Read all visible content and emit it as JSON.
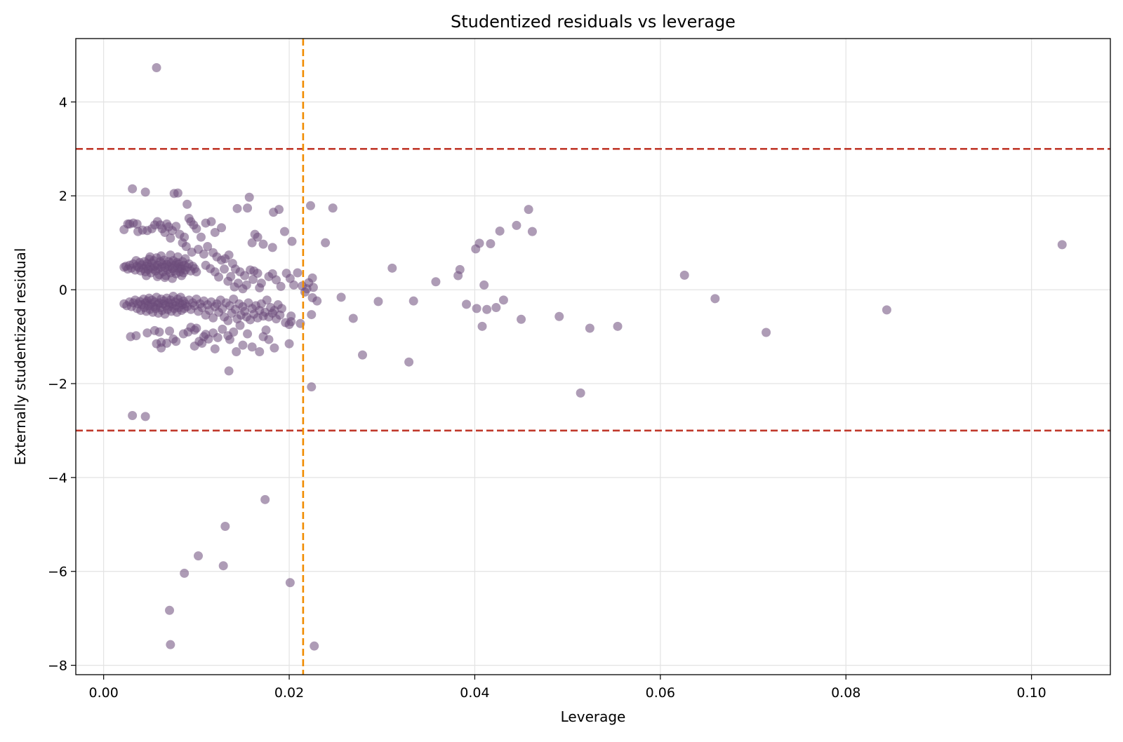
{
  "chart_data": {
    "type": "scatter",
    "title": "Studentized residuals vs leverage",
    "xlabel": "Leverage",
    "ylabel": "Externally studentized residual",
    "xlim": [
      -0.003,
      0.1085
    ],
    "ylim": [
      -8.2,
      5.35
    ],
    "xticks": [
      0.0,
      0.02,
      0.04,
      0.06,
      0.08,
      0.1
    ],
    "xtick_labels": [
      "0.00",
      "0.02",
      "0.04",
      "0.06",
      "0.08",
      "0.10"
    ],
    "yticks": [
      -8,
      -6,
      -4,
      -2,
      0,
      2,
      4
    ],
    "ytick_labels": [
      "−8",
      "−6",
      "−4",
      "−2",
      "0",
      "2",
      "4"
    ],
    "grid": true,
    "colors": {
      "points": "#6b4a7a",
      "hline": "#c0392b",
      "vline": "#f08c00"
    },
    "reference_lines": {
      "horizontal": [
        3,
        -3
      ],
      "vertical": [
        0.0215
      ]
    },
    "points": [
      [
        0.0057,
        4.73
      ],
      [
        0.0031,
        2.15
      ],
      [
        0.0045,
        2.08
      ],
      [
        0.0076,
        2.05
      ],
      [
        0.008,
        2.06
      ],
      [
        0.009,
        1.82
      ],
      [
        0.0022,
        1.28
      ],
      [
        0.0026,
        1.4
      ],
      [
        0.0028,
        1.4
      ],
      [
        0.0032,
        1.42
      ],
      [
        0.0036,
        1.4
      ],
      [
        0.0037,
        1.24
      ],
      [
        0.0042,
        1.27
      ],
      [
        0.0047,
        1.26
      ],
      [
        0.0052,
        1.3
      ],
      [
        0.0055,
        1.38
      ],
      [
        0.0058,
        1.45
      ],
      [
        0.0061,
        1.38
      ],
      [
        0.0063,
        1.3
      ],
      [
        0.0066,
        1.22
      ],
      [
        0.0068,
        1.4
      ],
      [
        0.007,
        1.34
      ],
      [
        0.0072,
        1.1
      ],
      [
        0.0074,
        1.26
      ],
      [
        0.0078,
        1.35
      ],
      [
        0.0082,
        1.18
      ],
      [
        0.0085,
        1.0
      ],
      [
        0.0087,
        1.12
      ],
      [
        0.0092,
        1.52
      ],
      [
        0.0094,
        1.45
      ],
      [
        0.0097,
        1.38
      ],
      [
        0.01,
        1.3
      ],
      [
        0.0105,
        1.12
      ],
      [
        0.011,
        1.42
      ],
      [
        0.0116,
        1.45
      ],
      [
        0.012,
        1.22
      ],
      [
        0.0127,
        1.32
      ],
      [
        0.0144,
        1.73
      ],
      [
        0.0155,
        1.74
      ],
      [
        0.0157,
        1.97
      ],
      [
        0.016,
        1.0
      ],
      [
        0.0163,
        1.18
      ],
      [
        0.0166,
        1.12
      ],
      [
        0.0172,
        0.97
      ],
      [
        0.0182,
        0.9
      ],
      [
        0.0183,
        1.65
      ],
      [
        0.0189,
        1.71
      ],
      [
        0.0195,
        1.24
      ],
      [
        0.0203,
        1.03
      ],
      [
        0.0223,
        1.79
      ],
      [
        0.0247,
        1.74
      ],
      [
        0.0239,
        1.0
      ],
      [
        0.0089,
        0.92
      ],
      [
        0.0095,
        0.8
      ],
      [
        0.0102,
        0.86
      ],
      [
        0.0108,
        0.76
      ],
      [
        0.0112,
        0.92
      ],
      [
        0.0118,
        0.79
      ],
      [
        0.0122,
        0.7
      ],
      [
        0.0127,
        0.63
      ],
      [
        0.0131,
        0.66
      ],
      [
        0.0135,
        0.74
      ],
      [
        0.0139,
        0.56
      ],
      [
        0.0142,
        0.44
      ],
      [
        0.0147,
        0.38
      ],
      [
        0.0152,
        0.3
      ],
      [
        0.0158,
        0.42
      ],
      [
        0.0161,
        0.22
      ],
      [
        0.0166,
        0.35
      ],
      [
        0.017,
        0.14
      ],
      [
        0.0178,
        0.28
      ],
      [
        0.0182,
        0.34
      ],
      [
        0.0186,
        0.21
      ],
      [
        0.0191,
        0.07
      ],
      [
        0.0197,
        0.35
      ],
      [
        0.0201,
        0.24
      ],
      [
        0.0205,
        0.1
      ],
      [
        0.0209,
        0.36
      ],
      [
        0.0214,
        0.08
      ],
      [
        0.0219,
        0.02
      ],
      [
        0.0221,
        0.15
      ],
      [
        0.0225,
        0.25
      ],
      [
        0.023,
        -0.24
      ],
      [
        0.0226,
        0.05
      ],
      [
        0.0217,
        -0.05
      ],
      [
        0.011,
        0.52
      ],
      [
        0.0115,
        0.45
      ],
      [
        0.012,
        0.38
      ],
      [
        0.0124,
        0.27
      ],
      [
        0.013,
        0.44
      ],
      [
        0.0134,
        0.18
      ],
      [
        0.0137,
        0.28
      ],
      [
        0.0141,
        0.06
      ],
      [
        0.0145,
        0.14
      ],
      [
        0.015,
        0.02
      ],
      [
        0.0154,
        0.1
      ],
      [
        0.0162,
        0.4
      ],
      [
        0.0168,
        0.04
      ],
      [
        0.0022,
        0.48
      ],
      [
        0.0024,
        0.5
      ],
      [
        0.0026,
        0.44
      ],
      [
        0.0028,
        0.52
      ],
      [
        0.003,
        0.46
      ],
      [
        0.0032,
        0.55
      ],
      [
        0.0034,
        0.42
      ],
      [
        0.0035,
        0.62
      ],
      [
        0.0036,
        0.5
      ],
      [
        0.0038,
        0.47
      ],
      [
        0.0039,
        0.58
      ],
      [
        0.004,
        0.4
      ],
      [
        0.0041,
        0.53
      ],
      [
        0.0043,
        0.45
      ],
      [
        0.0044,
        0.6
      ],
      [
        0.0045,
        0.38
      ],
      [
        0.0046,
        0.5
      ],
      [
        0.0047,
        0.56
      ],
      [
        0.0048,
        0.43
      ],
      [
        0.0049,
        0.65
      ],
      [
        0.005,
        0.48
      ],
      [
        0.0051,
        0.36
      ],
      [
        0.0052,
        0.57
      ],
      [
        0.0053,
        0.44
      ],
      [
        0.0054,
        0.62
      ],
      [
        0.0055,
        0.5
      ],
      [
        0.0056,
        0.4
      ],
      [
        0.0057,
        0.68
      ],
      [
        0.0058,
        0.52
      ],
      [
        0.0059,
        0.45
      ],
      [
        0.006,
        0.32
      ],
      [
        0.0061,
        0.6
      ],
      [
        0.0062,
        0.48
      ],
      [
        0.0063,
        0.55
      ],
      [
        0.0064,
        0.38
      ],
      [
        0.0065,
        0.63
      ],
      [
        0.0066,
        0.47
      ],
      [
        0.0067,
        0.3
      ],
      [
        0.0068,
        0.54
      ],
      [
        0.0069,
        0.42
      ],
      [
        0.007,
        0.6
      ],
      [
        0.0071,
        0.49
      ],
      [
        0.0072,
        0.36
      ],
      [
        0.0073,
        0.57
      ],
      [
        0.0074,
        0.45
      ],
      [
        0.0075,
        0.62
      ],
      [
        0.0076,
        0.4
      ],
      [
        0.0077,
        0.52
      ],
      [
        0.0078,
        0.34
      ],
      [
        0.0079,
        0.58
      ],
      [
        0.008,
        0.46
      ],
      [
        0.0081,
        0.55
      ],
      [
        0.0082,
        0.38
      ],
      [
        0.0083,
        0.5
      ],
      [
        0.0084,
        0.44
      ],
      [
        0.0085,
        0.6
      ],
      [
        0.0086,
        0.36
      ],
      [
        0.0087,
        0.52
      ],
      [
        0.0088,
        0.42
      ],
      [
        0.009,
        0.48
      ],
      [
        0.0092,
        0.55
      ],
      [
        0.0094,
        0.4
      ],
      [
        0.0096,
        0.5
      ],
      [
        0.0098,
        0.45
      ],
      [
        0.01,
        0.38
      ],
      [
        0.0046,
        0.3
      ],
      [
        0.0058,
        0.28
      ],
      [
        0.0066,
        0.26
      ],
      [
        0.0074,
        0.24
      ],
      [
        0.0084,
        0.3
      ],
      [
        0.005,
        0.7
      ],
      [
        0.0062,
        0.72
      ],
      [
        0.0072,
        0.74
      ],
      [
        0.008,
        0.7
      ],
      [
        0.0088,
        0.66
      ],
      [
        0.0022,
        -0.3
      ],
      [
        0.0025,
        -0.34
      ],
      [
        0.0028,
        -0.26
      ],
      [
        0.003,
        -0.36
      ],
      [
        0.0032,
        -0.28
      ],
      [
        0.0034,
        -0.22
      ],
      [
        0.0036,
        -0.4
      ],
      [
        0.0037,
        -0.3
      ],
      [
        0.0039,
        -0.25
      ],
      [
        0.004,
        -0.44
      ],
      [
        0.0041,
        -0.32
      ],
      [
        0.0043,
        -0.2
      ],
      [
        0.0044,
        -0.38
      ],
      [
        0.0045,
        -0.28
      ],
      [
        0.0046,
        -0.46
      ],
      [
        0.0047,
        -0.24
      ],
      [
        0.0048,
        -0.34
      ],
      [
        0.0049,
        -0.18
      ],
      [
        0.005,
        -0.42
      ],
      [
        0.0051,
        -0.3
      ],
      [
        0.0052,
        -0.22
      ],
      [
        0.0053,
        -0.48
      ],
      [
        0.0054,
        -0.36
      ],
      [
        0.0055,
        -0.26
      ],
      [
        0.0056,
        -0.4
      ],
      [
        0.0057,
        -0.16
      ],
      [
        0.0058,
        -0.32
      ],
      [
        0.0059,
        -0.5
      ],
      [
        0.006,
        -0.28
      ],
      [
        0.0061,
        -0.38
      ],
      [
        0.0062,
        -0.2
      ],
      [
        0.0063,
        -0.44
      ],
      [
        0.0064,
        -0.3
      ],
      [
        0.0065,
        -0.24
      ],
      [
        0.0066,
        -0.52
      ],
      [
        0.0067,
        -0.34
      ],
      [
        0.0068,
        -0.18
      ],
      [
        0.0069,
        -0.42
      ],
      [
        0.007,
        -0.28
      ],
      [
        0.0071,
        -0.36
      ],
      [
        0.0072,
        -0.22
      ],
      [
        0.0073,
        -0.46
      ],
      [
        0.0074,
        -0.3
      ],
      [
        0.0075,
        -0.14
      ],
      [
        0.0076,
        -0.4
      ],
      [
        0.0077,
        -0.26
      ],
      [
        0.0078,
        -0.34
      ],
      [
        0.0079,
        -0.48
      ],
      [
        0.008,
        -0.2
      ],
      [
        0.0081,
        -0.38
      ],
      [
        0.0082,
        -0.28
      ],
      [
        0.0083,
        -0.16
      ],
      [
        0.0084,
        -0.44
      ],
      [
        0.0085,
        -0.32
      ],
      [
        0.0086,
        -0.24
      ],
      [
        0.0087,
        -0.4
      ],
      [
        0.0088,
        -0.3
      ],
      [
        0.009,
        -0.36
      ],
      [
        0.0092,
        -0.22
      ],
      [
        0.0094,
        -0.42
      ],
      [
        0.0096,
        -0.28
      ],
      [
        0.0098,
        -0.34
      ],
      [
        0.01,
        -0.2
      ],
      [
        0.0102,
        -0.46
      ],
      [
        0.0104,
        -0.3
      ],
      [
        0.0106,
        -0.38
      ],
      [
        0.0108,
        -0.24
      ],
      [
        0.011,
        -0.54
      ],
      [
        0.0112,
        -0.32
      ],
      [
        0.0114,
        -0.44
      ],
      [
        0.0116,
        -0.26
      ],
      [
        0.0118,
        -0.6
      ],
      [
        0.012,
        -0.36
      ],
      [
        0.0122,
        -0.3
      ],
      [
        0.0124,
        -0.48
      ],
      [
        0.0126,
        -0.22
      ],
      [
        0.0128,
        -0.4
      ],
      [
        0.013,
        -0.58
      ],
      [
        0.0132,
        -0.28
      ],
      [
        0.0134,
        -0.66
      ],
      [
        0.0136,
        -0.34
      ],
      [
        0.0138,
        -0.5
      ],
      [
        0.014,
        -0.2
      ],
      [
        0.0142,
        -0.42
      ],
      [
        0.0144,
        -0.62
      ],
      [
        0.0146,
        -0.3
      ],
      [
        0.0148,
        -0.54
      ],
      [
        0.015,
        -0.36
      ],
      [
        0.0152,
        -0.46
      ],
      [
        0.0154,
        -0.58
      ],
      [
        0.0156,
        -0.28
      ],
      [
        0.0158,
        -0.64
      ],
      [
        0.016,
        -0.4
      ],
      [
        0.0162,
        -0.52
      ],
      [
        0.0164,
        -0.34
      ],
      [
        0.0166,
        -0.6
      ],
      [
        0.0168,
        -0.44
      ],
      [
        0.017,
        -0.3
      ],
      [
        0.0172,
        -0.56
      ],
      [
        0.0174,
        -0.48
      ],
      [
        0.0176,
        -0.22
      ],
      [
        0.0178,
        -0.58
      ],
      [
        0.018,
        -0.38
      ],
      [
        0.0182,
        -0.5
      ],
      [
        0.0184,
        -0.44
      ],
      [
        0.0186,
        -0.62
      ],
      [
        0.0188,
        -0.32
      ],
      [
        0.019,
        -0.54
      ],
      [
        0.0192,
        -0.4
      ],
      [
        0.0196,
        -0.7
      ],
      [
        0.02,
        -0.74
      ],
      [
        0.0202,
        -0.56
      ],
      [
        0.0212,
        -0.72
      ],
      [
        0.0224,
        -0.53
      ],
      [
        0.0225,
        -0.17
      ],
      [
        0.0029,
        -1.0
      ],
      [
        0.0035,
        -0.98
      ],
      [
        0.0047,
        -0.92
      ],
      [
        0.0055,
        -0.87
      ],
      [
        0.006,
        -0.9
      ],
      [
        0.0062,
        -1.12
      ],
      [
        0.0057,
        -1.15
      ],
      [
        0.0068,
        -1.14
      ],
      [
        0.0071,
        -0.88
      ],
      [
        0.0075,
        -1.05
      ],
      [
        0.0078,
        -1.1
      ],
      [
        0.0086,
        -0.94
      ],
      [
        0.0091,
        -0.9
      ],
      [
        0.0094,
        -0.8
      ],
      [
        0.0098,
        -0.86
      ],
      [
        0.01,
        -0.82
      ],
      [
        0.0103,
        -1.1
      ],
      [
        0.0106,
        -1.14
      ],
      [
        0.0108,
        -1.0
      ],
      [
        0.011,
        -0.95
      ],
      [
        0.0113,
        -1.05
      ],
      [
        0.0118,
        -0.92
      ],
      [
        0.0123,
        -1.02
      ],
      [
        0.0128,
        -0.84
      ],
      [
        0.0134,
        -0.98
      ],
      [
        0.0136,
        -1.06
      ],
      [
        0.014,
        -0.9
      ],
      [
        0.0147,
        -0.76
      ],
      [
        0.015,
        -1.18
      ],
      [
        0.0155,
        -0.94
      ],
      [
        0.016,
        -1.22
      ],
      [
        0.0168,
        -1.32
      ],
      [
        0.0172,
        -1.0
      ],
      [
        0.0175,
        -0.86
      ],
      [
        0.0178,
        -1.06
      ],
      [
        0.0184,
        -1.24
      ],
      [
        0.02,
        -1.15
      ],
      [
        0.0202,
        -0.68
      ],
      [
        0.0062,
        -1.24
      ],
      [
        0.0098,
        -1.2
      ],
      [
        0.012,
        -1.26
      ],
      [
        0.0143,
        -1.32
      ],
      [
        0.0135,
        -1.73
      ],
      [
        0.0031,
        -2.68
      ],
      [
        0.0045,
        -2.7
      ],
      [
        0.0224,
        -2.07
      ],
      [
        0.0174,
        -4.47
      ],
      [
        0.0131,
        -5.04
      ],
      [
        0.0102,
        -5.67
      ],
      [
        0.0129,
        -5.88
      ],
      [
        0.0087,
        -6.04
      ],
      [
        0.0201,
        -6.24
      ],
      [
        0.0071,
        -6.83
      ],
      [
        0.0072,
        -7.56
      ],
      [
        0.0227,
        -7.59
      ],
      [
        0.0256,
        -0.16
      ],
      [
        0.0269,
        -0.61
      ],
      [
        0.0279,
        -1.39
      ],
      [
        0.0296,
        -0.25
      ],
      [
        0.0311,
        0.46
      ],
      [
        0.0329,
        -1.54
      ],
      [
        0.0334,
        -0.24
      ],
      [
        0.0358,
        0.17
      ],
      [
        0.0382,
        0.3
      ],
      [
        0.0384,
        0.43
      ],
      [
        0.0391,
        -0.31
      ],
      [
        0.0401,
        0.87
      ],
      [
        0.0402,
        -0.4
      ],
      [
        0.0405,
        0.99
      ],
      [
        0.0408,
        -0.78
      ],
      [
        0.041,
        0.1
      ],
      [
        0.0413,
        -0.42
      ],
      [
        0.0417,
        0.98
      ],
      [
        0.0423,
        -0.38
      ],
      [
        0.0427,
        1.25
      ],
      [
        0.0431,
        -0.22
      ],
      [
        0.0445,
        1.37
      ],
      [
        0.045,
        -0.63
      ],
      [
        0.0458,
        1.71
      ],
      [
        0.0462,
        1.24
      ],
      [
        0.0491,
        -0.57
      ],
      [
        0.0514,
        -2.2
      ],
      [
        0.0524,
        -0.82
      ],
      [
        0.0554,
        -0.78
      ],
      [
        0.0626,
        0.31
      ],
      [
        0.0659,
        -0.19
      ],
      [
        0.0714,
        -0.91
      ],
      [
        0.0844,
        -0.43
      ],
      [
        0.1033,
        0.96
      ]
    ]
  }
}
